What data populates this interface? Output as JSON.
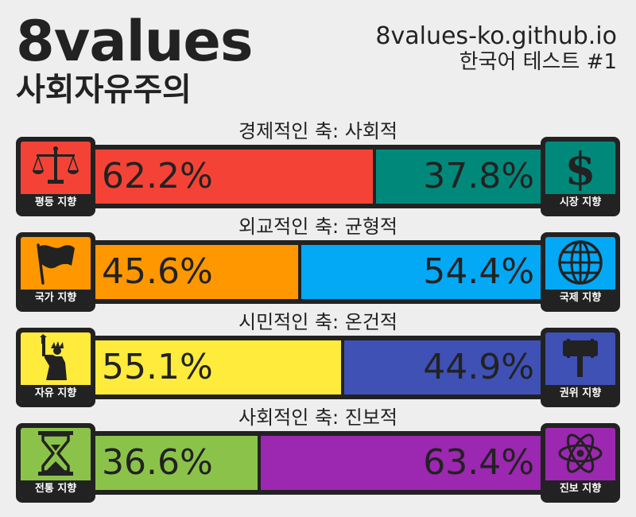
{
  "header": {
    "title": "8values",
    "subtitle": "사회자유주의",
    "site_url": "8values-ko.github.io",
    "edition": "한국어 테스트 #1"
  },
  "colors": {
    "ink": "#222222",
    "background": "#eeeeee"
  },
  "axes": [
    {
      "label": "경제적인 축: 사회적",
      "left": {
        "name": "평등 지향",
        "percent": "62.2%",
        "value": 62.2,
        "color": "#f44336",
        "icon": "scales-icon"
      },
      "right": {
        "name": "시장 지향",
        "percent": "37.8%",
        "value": 37.8,
        "color": "#00897b",
        "icon": "dollar-icon"
      }
    },
    {
      "label": "외교적인 축: 균형적",
      "left": {
        "name": "국가 지향",
        "percent": "45.6%",
        "value": 45.6,
        "color": "#ff9800",
        "icon": "flag-icon"
      },
      "right": {
        "name": "국제 지향",
        "percent": "54.4%",
        "value": 54.4,
        "color": "#03a9f4",
        "icon": "globe-icon"
      }
    },
    {
      "label": "시민적인 축: 온건적",
      "left": {
        "name": "자유 지향",
        "percent": "55.1%",
        "value": 55.1,
        "color": "#ffeb3b",
        "icon": "liberty-icon"
      },
      "right": {
        "name": "권위 지향",
        "percent": "44.9%",
        "value": 44.9,
        "color": "#3f51b5",
        "icon": "gavel-icon"
      }
    },
    {
      "label": "사회적인 축: 진보적",
      "left": {
        "name": "전통 지향",
        "percent": "36.6%",
        "value": 36.6,
        "color": "#8bc34a",
        "icon": "hourglass-icon"
      },
      "right": {
        "name": "진보 지향",
        "percent": "63.4%",
        "value": 63.4,
        "color": "#9c27b0",
        "icon": "atom-icon"
      }
    }
  ]
}
